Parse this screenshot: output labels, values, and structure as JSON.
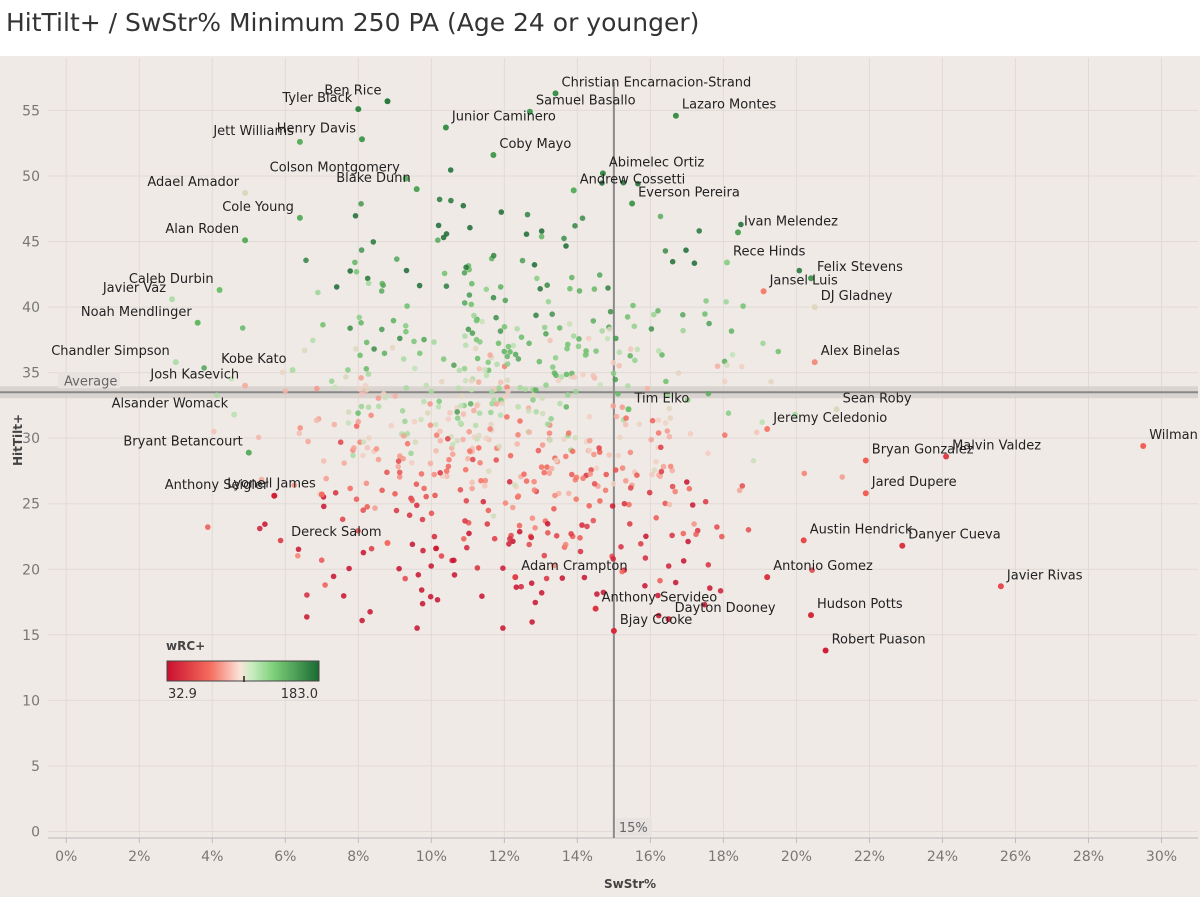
{
  "title": "HitTilt+ / SwStr% Minimum 250 PA (Age 24 or younger)",
  "chart_data": {
    "type": "scatter",
    "title": "HitTilt+ / SwStr% Minimum 250 PA (Age 24 or younger)",
    "xlabel": "SwStr%",
    "ylabel": "HitTilt+",
    "xlim": [
      -0.005,
      0.31
    ],
    "ylim": [
      -0.5,
      59
    ],
    "x_ticks": [
      0,
      0.02,
      0.04,
      0.06,
      0.08,
      0.1,
      0.12,
      0.14,
      0.16,
      0.18,
      0.2,
      0.22,
      0.24,
      0.26,
      0.28,
      0.3
    ],
    "x_tick_labels": [
      "0%",
      "2%",
      "4%",
      "6%",
      "8%",
      "10%",
      "12%",
      "14%",
      "16%",
      "18%",
      "20%",
      "22%",
      "24%",
      "26%",
      "28%",
      "30%"
    ],
    "y_ticks": [
      0,
      5,
      10,
      15,
      20,
      25,
      30,
      35,
      40,
      45,
      50,
      55
    ],
    "y_tick_labels": [
      "0",
      "5",
      "10",
      "15",
      "20",
      "25",
      "30",
      "35",
      "40",
      "45",
      "50",
      "55"
    ],
    "grid": true,
    "reference_lines": {
      "horizontal": {
        "value": 33.5,
        "label": "Average"
      },
      "vertical": {
        "value": 0.15,
        "label": "15%"
      }
    },
    "color_legend": {
      "title": "wRC+",
      "min": 32.9,
      "max": 183.0,
      "min_label": "32.9",
      "max_label": "183.0",
      "low_color": "#c8102e",
      "mid_color": "#f7f0ea",
      "high_color": "#1a6b32"
    },
    "labeled_points": [
      {
        "name": "Ben Rice",
        "x": 0.088,
        "y": 55.7,
        "wrc": 175
      },
      {
        "name": "Samuel Basallo",
        "x": 0.127,
        "y": 54.9,
        "wrc": 160
      },
      {
        "name": "Christian Encarnacion-Strand",
        "x": 0.134,
        "y": 56.3,
        "wrc": 165
      },
      {
        "name": "Tyler Black",
        "x": 0.08,
        "y": 55.1,
        "wrc": 170
      },
      {
        "name": "Henry Davis",
        "x": 0.081,
        "y": 52.8,
        "wrc": 160
      },
      {
        "name": "Junior Caminero",
        "x": 0.104,
        "y": 53.7,
        "wrc": 165
      },
      {
        "name": "Lazaro Montes",
        "x": 0.167,
        "y": 54.6,
        "wrc": 165
      },
      {
        "name": "Jett Williams",
        "x": 0.064,
        "y": 52.6,
        "wrc": 150
      },
      {
        "name": "Coby Mayo",
        "x": 0.117,
        "y": 51.6,
        "wrc": 160
      },
      {
        "name": "Abimelec Ortiz",
        "x": 0.147,
        "y": 50.2,
        "wrc": 165
      },
      {
        "name": "Colson Montgomery",
        "x": 0.093,
        "y": 49.8,
        "wrc": 150
      },
      {
        "name": "Adael Amador",
        "x": 0.049,
        "y": 48.7,
        "wrc": 110
      },
      {
        "name": "Andrew Cossetti",
        "x": 0.139,
        "y": 48.9,
        "wrc": 150
      },
      {
        "name": "Blake Dunn",
        "x": 0.096,
        "y": 49.0,
        "wrc": 155
      },
      {
        "name": "Everson Pereira",
        "x": 0.155,
        "y": 47.9,
        "wrc": 160
      },
      {
        "name": "Cole Young",
        "x": 0.064,
        "y": 46.8,
        "wrc": 150
      },
      {
        "name": "Ivan Melendez",
        "x": 0.184,
        "y": 45.7,
        "wrc": 155
      },
      {
        "name": "Alan Roden",
        "x": 0.049,
        "y": 45.1,
        "wrc": 150
      },
      {
        "name": "Rece Hinds",
        "x": 0.181,
        "y": 43.4,
        "wrc": 130
      },
      {
        "name": "Felix Stevens",
        "x": 0.204,
        "y": 42.2,
        "wrc": 160
      },
      {
        "name": "Caleb Durbin",
        "x": 0.042,
        "y": 41.3,
        "wrc": 140
      },
      {
        "name": "Jansel Luis",
        "x": 0.191,
        "y": 41.2,
        "wrc": 80
      },
      {
        "name": "Javier Vaz",
        "x": 0.029,
        "y": 40.6,
        "wrc": 120
      },
      {
        "name": "DJ Gladney",
        "x": 0.205,
        "y": 40.0,
        "wrc": 108
      },
      {
        "name": "Noah Mendlinger",
        "x": 0.036,
        "y": 38.8,
        "wrc": 145
      },
      {
        "name": "Alex Binelas",
        "x": 0.205,
        "y": 35.8,
        "wrc": 85
      },
      {
        "name": "Chandler Simpson",
        "x": 0.03,
        "y": 35.8,
        "wrc": 120
      },
      {
        "name": "Kobe Kato",
        "x": 0.062,
        "y": 35.2,
        "wrc": 120
      },
      {
        "name": "Josh Kasevich",
        "x": 0.049,
        "y": 34.0,
        "wrc": 95
      },
      {
        "name": "Tim Elko",
        "x": 0.154,
        "y": 32.2,
        "wrc": 140
      },
      {
        "name": "Sean Roby",
        "x": 0.211,
        "y": 32.2,
        "wrc": 110
      },
      {
        "name": "Jeremy Celedonio",
        "x": 0.192,
        "y": 30.7,
        "wrc": 80
      },
      {
        "name": "Alsander Womack",
        "x": 0.046,
        "y": 31.8,
        "wrc": 115
      },
      {
        "name": "Malvin Valdez",
        "x": 0.241,
        "y": 28.6,
        "wrc": 55
      },
      {
        "name": "Wilman Diaz",
        "x": 0.295,
        "y": 29.4,
        "wrc": 70
      },
      {
        "name": "Bryant Betancourt",
        "x": 0.05,
        "y": 28.9,
        "wrc": 150
      },
      {
        "name": "Bryan Gonzalez",
        "x": 0.219,
        "y": 28.3,
        "wrc": 70
      },
      {
        "name": "Anthony Seigler",
        "x": 0.057,
        "y": 25.6,
        "wrc": 40
      },
      {
        "name": "Jared Dupere",
        "x": 0.219,
        "y": 25.8,
        "wrc": 70
      },
      {
        "name": "Lyonell James",
        "x": 0.07,
        "y": 25.7,
        "wrc": 75
      },
      {
        "name": "Austin Hendrick",
        "x": 0.202,
        "y": 22.2,
        "wrc": 60
      },
      {
        "name": "Danyer Cueva",
        "x": 0.229,
        "y": 21.8,
        "wrc": 50
      },
      {
        "name": "Dereck Salom",
        "x": 0.088,
        "y": 22.0,
        "wrc": 75
      },
      {
        "name": "Adam Crampton",
        "x": 0.123,
        "y": 19.4,
        "wrc": 55
      },
      {
        "name": "Antonio Gomez",
        "x": 0.192,
        "y": 19.4,
        "wrc": 50
      },
      {
        "name": "Javier Rivas",
        "x": 0.256,
        "y": 18.7,
        "wrc": 60
      },
      {
        "name": "Anthony Servideo",
        "x": 0.145,
        "y": 17.0,
        "wrc": 50
      },
      {
        "name": "Hudson Potts",
        "x": 0.204,
        "y": 16.5,
        "wrc": 45
      },
      {
        "name": "Dayton Dooney",
        "x": 0.165,
        "y": 16.2,
        "wrc": 48
      },
      {
        "name": "Bjay Cooke",
        "x": 0.15,
        "y": 15.3,
        "wrc": 45
      },
      {
        "name": "Robert Puason",
        "x": 0.208,
        "y": 13.8,
        "wrc": 40
      }
    ],
    "other_points_count": 700
  }
}
